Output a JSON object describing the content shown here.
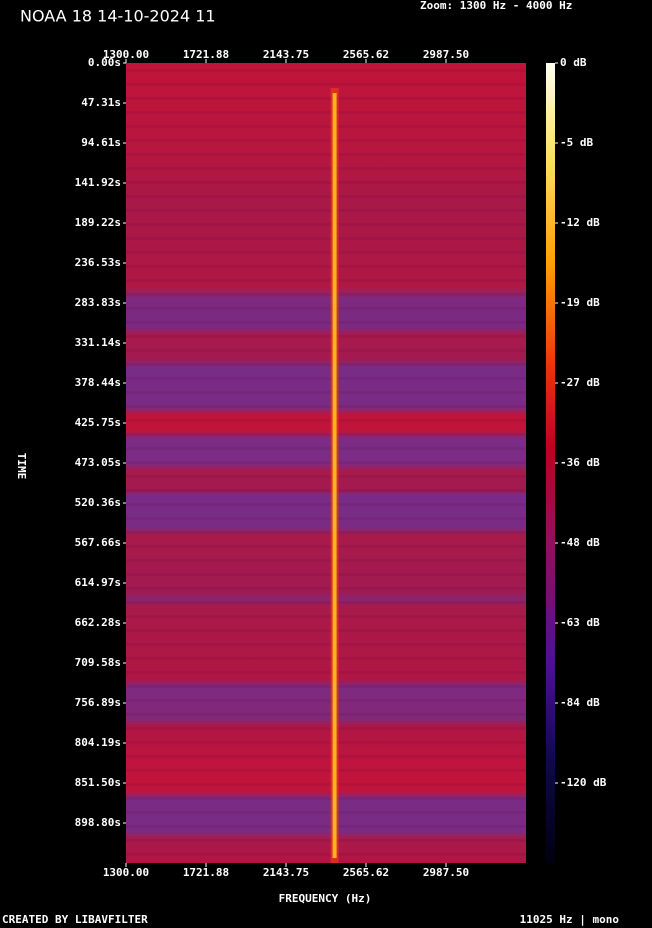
{
  "chart_data": {
    "type": "spectrogram",
    "title": "NOAA 18 14-10-2024 11",
    "subtitle": "Zoom: 1300 Hz - 4000 Hz",
    "xlabel": "FREQUENCY (Hz)",
    "ylabel": "TIME",
    "footer_left": "CREATED BY LIBAVFILTER",
    "footer_right": "11025 Hz | mono",
    "xlim": [
      1300,
      3409.375
    ],
    "xticks": [
      {
        "value": 1300,
        "label": "1300.00"
      },
      {
        "value": 1721.88,
        "label": "1721.88"
      },
      {
        "value": 2143.75,
        "label": "2143.75"
      },
      {
        "value": 2565.62,
        "label": "2565.62"
      },
      {
        "value": 2987.5,
        "label": "2987.50"
      }
    ],
    "ylim": [
      0,
      946.1
    ],
    "yticks": [
      {
        "value": 0,
        "label": "0.00s"
      },
      {
        "value": 47.31,
        "label": "47.31s"
      },
      {
        "value": 94.61,
        "label": "94.61s"
      },
      {
        "value": 141.92,
        "label": "141.92s"
      },
      {
        "value": 189.22,
        "label": "189.22s"
      },
      {
        "value": 236.53,
        "label": "236.53s"
      },
      {
        "value": 283.83,
        "label": "283.83s"
      },
      {
        "value": 331.14,
        "label": "331.14s"
      },
      {
        "value": 378.44,
        "label": "378.44s"
      },
      {
        "value": 425.75,
        "label": "425.75s"
      },
      {
        "value": 473.05,
        "label": "473.05s"
      },
      {
        "value": 520.36,
        "label": "520.36s"
      },
      {
        "value": 567.66,
        "label": "567.66s"
      },
      {
        "value": 614.97,
        "label": "614.97s"
      },
      {
        "value": 662.28,
        "label": "662.28s"
      },
      {
        "value": 709.58,
        "label": "709.58s"
      },
      {
        "value": 756.89,
        "label": "756.89s"
      },
      {
        "value": 804.19,
        "label": "804.19s"
      },
      {
        "value": 851.5,
        "label": "851.50s"
      },
      {
        "value": 898.8,
        "label": "898.80s"
      }
    ],
    "colorbar_ticks": [
      {
        "value": 0,
        "label": "0 dB"
      },
      {
        "value": -5,
        "label": "-5 dB"
      },
      {
        "value": -12,
        "label": "-12 dB"
      },
      {
        "value": -19,
        "label": "-19 dB"
      },
      {
        "value": -27,
        "label": "-27 dB"
      },
      {
        "value": -36,
        "label": "-36 dB"
      },
      {
        "value": -48,
        "label": "-48 dB"
      },
      {
        "value": -63,
        "label": "-63 dB"
      },
      {
        "value": -84,
        "label": "-84 dB"
      },
      {
        "value": -120,
        "label": "-120 dB"
      }
    ],
    "signal_frequency": 2400
  }
}
